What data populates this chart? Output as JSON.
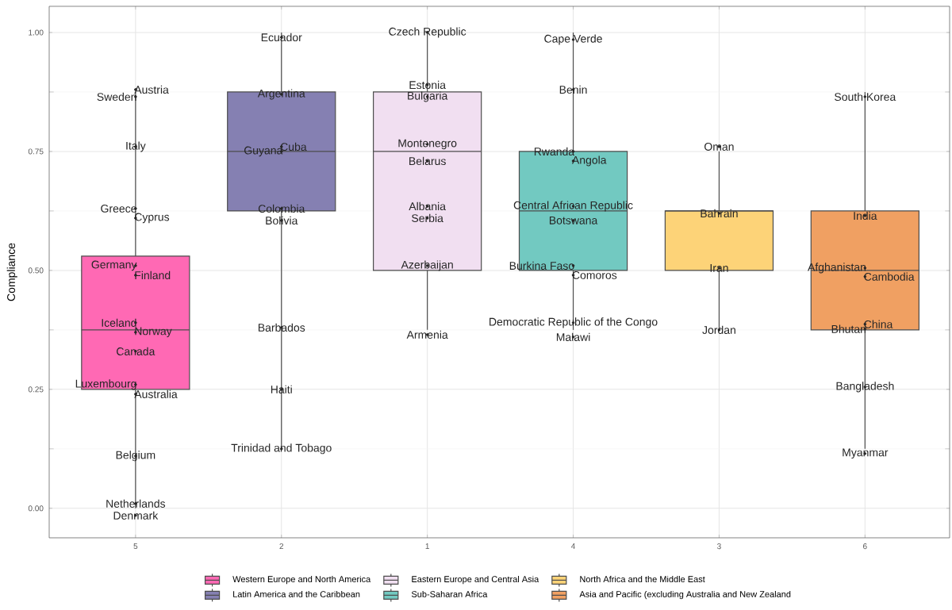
{
  "chart_data": {
    "type": "box",
    "ylabel": "Compliance",
    "categories": [
      "5",
      "2",
      "1",
      "4",
      "3",
      "6"
    ],
    "ylim": [
      -0.062,
      1.055
    ],
    "yticks": [
      {
        "value": 0,
        "label": "0.00"
      },
      {
        "value": 0.25,
        "label": "0.25"
      },
      {
        "value": 0.5,
        "label": "0.50"
      },
      {
        "value": 0.75,
        "label": "0.75"
      },
      {
        "value": 1,
        "label": "1.00"
      }
    ],
    "grid": true,
    "legend": "bottom",
    "series": [
      {
        "name": "Western Europe and North America",
        "color": "#ff69b4",
        "boxes": [
          {
            "low": 0,
            "q1": 0.25,
            "median": 0.375,
            "q3": 0.53,
            "high": 0.875
          },
          null,
          null,
          null,
          null,
          null
        ]
      },
      {
        "name": "Latin America and the Caribbean",
        "color": "#8580b2",
        "boxes": [
          null,
          {
            "low": 0.125,
            "q1": 0.625,
            "median": 0.75,
            "q3": 0.875,
            "high": 1.0
          },
          null,
          null,
          null,
          null
        ]
      },
      {
        "name": "Eastern Europe and Central Asia",
        "color": "#f1dff1",
        "boxes": [
          null,
          null,
          {
            "low": 0.375,
            "q1": 0.5,
            "median": 0.75,
            "q3": 0.875,
            "high": 1.0
          },
          null,
          null,
          null
        ]
      },
      {
        "name": "Sub-Saharan Africa",
        "color": "#72c9c1",
        "boxes": [
          null,
          null,
          null,
          {
            "low": 0.375,
            "q1": 0.5,
            "median": 0.625,
            "q3": 0.75,
            "high": 1.0
          },
          null,
          null
        ]
      },
      {
        "name": "North Africa and the Middle East",
        "color": "#fdd378",
        "boxes": [
          null,
          null,
          null,
          null,
          {
            "low": 0.375,
            "q1": 0.5,
            "median": 0.625,
            "q3": 0.625,
            "high": 0.75
          },
          null
        ]
      },
      {
        "name": "Asia and Pacific (excluding Australia and New Zealand",
        "color": "#f0a062",
        "boxes": [
          null,
          null,
          null,
          null,
          null,
          {
            "low": 0.125,
            "q1": 0.375,
            "median": 0.5,
            "q3": 0.625,
            "high": 0.875
          }
        ]
      },
      {
        "type": "scatter",
        "color": "#262626",
        "marker": "circle",
        "x": [
          "5",
          "5",
          "5",
          "5",
          "5",
          "5",
          "5",
          "5",
          "5",
          "5",
          "5",
          "5",
          "5",
          "5",
          "5",
          "2",
          "2",
          "2",
          "2",
          "2",
          "2",
          "2",
          "2",
          "2",
          "1",
          "1",
          "1",
          "1",
          "1",
          "1",
          "1",
          "1",
          "1",
          "4",
          "4",
          "4",
          "4",
          "4",
          "4",
          "4",
          "4",
          "4",
          "4",
          "3",
          "3",
          "3",
          "3",
          "6",
          "6",
          "6",
          "6",
          "6",
          "6",
          "6",
          "6"
        ],
        "values": [
          0.865,
          0.88,
          0.76,
          0.63,
          0.61,
          0.51,
          0.49,
          0.39,
          0.37,
          0.33,
          0.26,
          0.24,
          0.11,
          0.01,
          -0.015,
          0.99,
          0.87,
          0.75,
          0.76,
          0.63,
          0.605,
          0.38,
          0.25,
          0.125,
          1.0,
          0.89,
          0.865,
          0.765,
          0.73,
          0.635,
          0.61,
          0.51,
          0.365,
          0.985,
          0.88,
          0.75,
          0.73,
          0.635,
          0.605,
          0.51,
          0.49,
          0.39,
          0.36,
          0.76,
          0.62,
          0.505,
          0.375,
          0.865,
          0.615,
          0.505,
          0.487,
          0.377,
          0.387,
          0.255,
          0.115
        ],
        "value_labels": [
          "Sweden",
          "Austria",
          "Italy",
          "Greece",
          "Cyprus",
          "Germany",
          "Finland",
          "Iceland",
          "Norway",
          "Canada",
          "Luxembourg",
          "Australia",
          "Belgium",
          "Netherlands",
          "Denmark",
          "Ecuador",
          "Argentina",
          "Guyana",
          "Cuba",
          "Colombia",
          "Bolivia",
          "Barbados",
          "Haiti",
          "Trinidad and Tobago",
          "Czech Republic",
          "Estonia",
          "Bulgaria",
          "Montenegro",
          "Belarus",
          "Albania",
          "Serbia",
          "Azerbaijan",
          "Armenia",
          "Cape Verde",
          "Benin",
          "Rwanda",
          "Angola",
          "Central African Republic",
          "Botswana",
          "Burkina Faso",
          "Comoros",
          "Democratic Republic of the Congo",
          "Malawi",
          "Oman",
          "Bahrain",
          "Iran",
          "Jordan",
          "South Korea",
          "India",
          "Afghanistan",
          "Cambodia",
          "Bhutan",
          "China",
          "Bangladesh",
          "Myanmar"
        ]
      }
    ]
  }
}
